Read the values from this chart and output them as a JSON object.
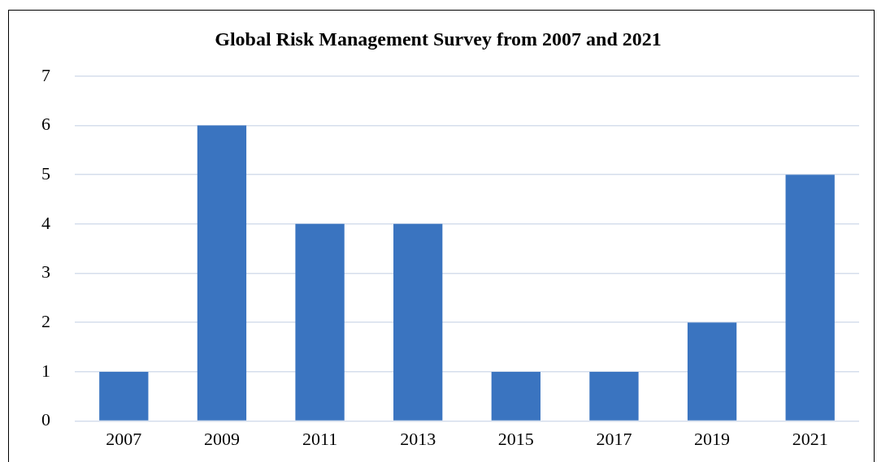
{
  "chart_data": {
    "type": "bar",
    "title": "Global Risk Management Survey from 2007 and 2021",
    "categories": [
      "2007",
      "2009",
      "2011",
      "2013",
      "2015",
      "2017",
      "2019",
      "2021"
    ],
    "values": [
      1,
      6,
      4,
      4,
      1,
      1,
      2,
      5
    ],
    "color": "#3a74c0",
    "ylim": [
      0,
      7
    ],
    "yticks": [
      0,
      1,
      2,
      3,
      4,
      5,
      6,
      7
    ],
    "grid": "y"
  }
}
